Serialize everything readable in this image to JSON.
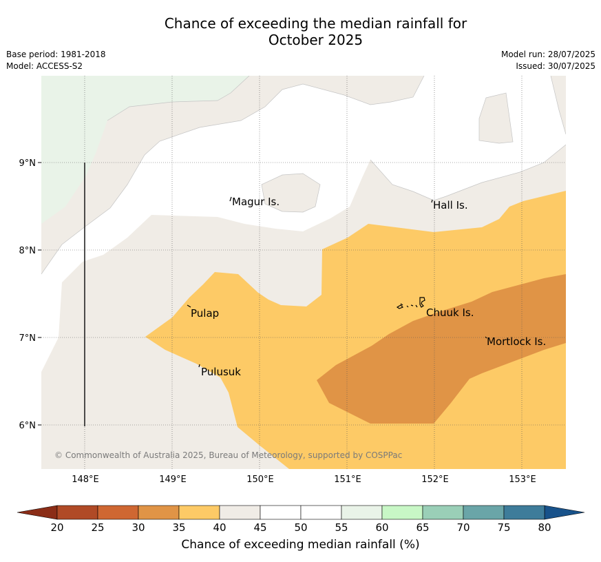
{
  "title_line1": "Chance of exceeding the median rainfall for",
  "title_line2": "October 2025",
  "meta": {
    "base_period": "Base period: 1981-2018",
    "model": "Model: ACCESS-S2",
    "model_run": "Model run: 28/07/2025",
    "issued": "Issued: 30/07/2025"
  },
  "map": {
    "lon_range": [
      147.5,
      153.5
    ],
    "lat_range": [
      5.5,
      10.0
    ],
    "lon_ticks": [
      "148°E",
      "149°E",
      "150°E",
      "151°E",
      "152°E",
      "153°E"
    ],
    "lat_ticks": [
      "9°N",
      "8°N",
      "7°N",
      "6°N"
    ],
    "places": [
      "Magur Is.",
      "Hall Is.",
      "Pulap",
      "Chuuk Is.",
      "Mortlock Is.",
      "Pulusuk"
    ],
    "credit": "© Commonwealth of Australia 2025, Bureau of Meteorology, supported by COSPPac"
  },
  "colorbar": {
    "title": "Chance of exceeding median rainfall (%)",
    "ticks": [
      "20",
      "25",
      "30",
      "35",
      "40",
      "45",
      "50",
      "55",
      "60",
      "65",
      "70",
      "75",
      "80"
    ],
    "colors": [
      "#b04a26",
      "#cf6732",
      "#e09446",
      "#fdca66",
      "#f0ece6",
      "#ffffff",
      "#ffffff",
      "#e9f3e8",
      "#c8f7c6",
      "#9acfb7",
      "#6aa5a8",
      "#3e7c9a"
    ],
    "low_extend_color": "#8b2d17",
    "high_extend_color": "#18528a"
  },
  "legend_colors": {
    "pct_30_35": "#e09446",
    "pct_35_40": "#fdca66",
    "pct_40_45": "#f0ece6",
    "pct_45_55": "#ffffff",
    "pct_55_60": "#e9f3e8"
  }
}
